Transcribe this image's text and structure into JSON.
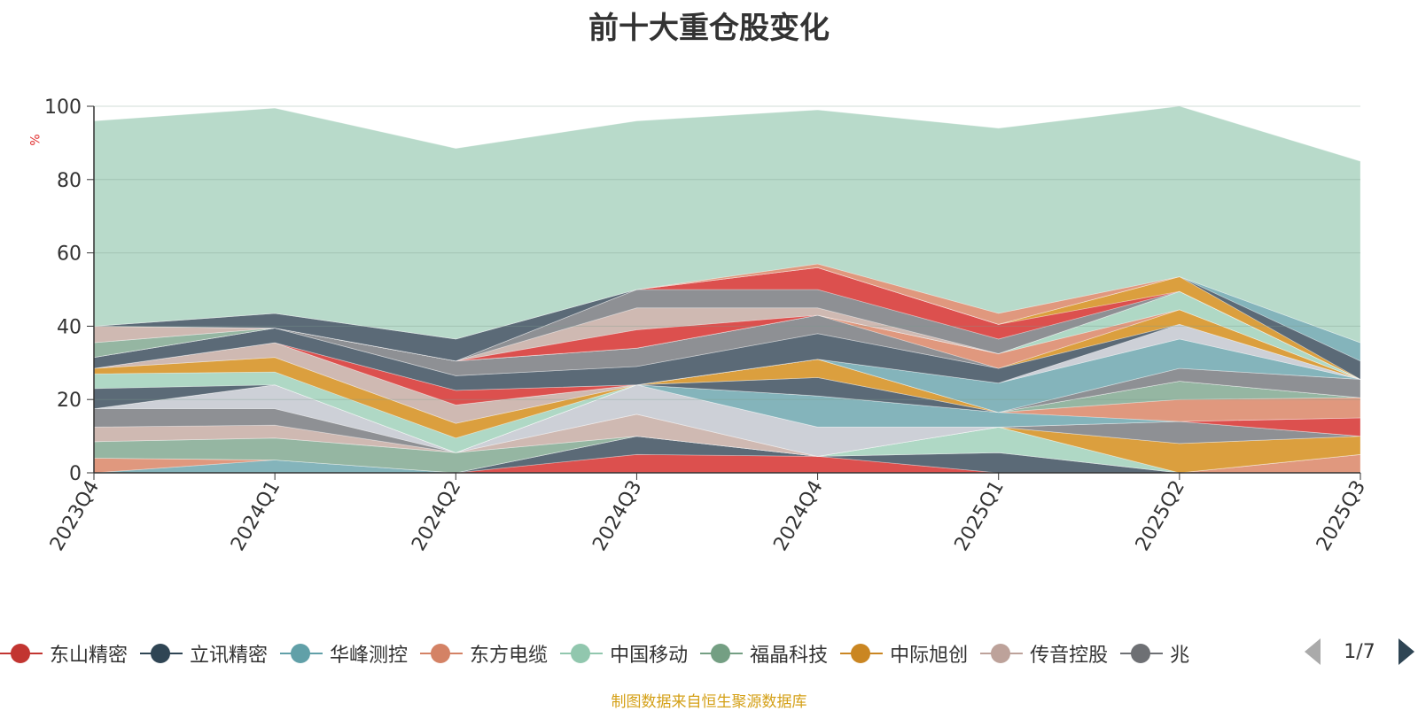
{
  "title": "前十大重仓股变化",
  "unit": "%",
  "source": "制图数据来自恒生聚源数据库",
  "pager": {
    "text": "1/7"
  },
  "legend": [
    {
      "name": "东山精密",
      "color": "#c23531"
    },
    {
      "name": "立讯精密",
      "color": "#2f4554"
    },
    {
      "name": "华峰测控",
      "color": "#61a0a8"
    },
    {
      "name": "东方电缆",
      "color": "#d48265"
    },
    {
      "name": "中国移动",
      "color": "#91c7ae"
    },
    {
      "name": "福晶科技",
      "color": "#749f83"
    },
    {
      "name": "中际旭创",
      "color": "#ca8622"
    },
    {
      "name": "传音控股",
      "color": "#bda29a"
    },
    {
      "name": "兆",
      "color": "#6e7074"
    }
  ],
  "chart_data": {
    "type": "area",
    "title": "前十大重仓股变化",
    "ylabel": "%",
    "ylim": [
      0,
      100
    ],
    "yticks": [
      0,
      20,
      40,
      60,
      80,
      100
    ],
    "categories": [
      "2023Q4",
      "2024Q1",
      "2024Q2",
      "2024Q3",
      "2024Q4",
      "2025Q1",
      "2025Q2",
      "2025Q3"
    ],
    "series": [
      {
        "color": "#d9413f",
        "values": [
          0,
          0,
          0,
          5,
          4.5,
          0,
          0,
          0
        ]
      },
      {
        "color": "#4d5d6b",
        "values": [
          0,
          0,
          0,
          5,
          0,
          5.5,
          0,
          0
        ]
      },
      {
        "color": "#79aeb5",
        "values": [
          0,
          3.5,
          0,
          0,
          0,
          0,
          0,
          0
        ]
      },
      {
        "color": "#dd8f73",
        "values": [
          4,
          0,
          0,
          0,
          0,
          0,
          0,
          5
        ]
      },
      {
        "color": "#a8d5c0",
        "values": [
          0,
          0,
          0,
          0,
          0,
          7,
          0,
          0
        ]
      },
      {
        "color": "#8cb09a",
        "values": [
          4.5,
          6,
          5.5,
          0,
          0,
          0,
          0,
          0
        ]
      },
      {
        "color": "#d8972e",
        "values": [
          0,
          0,
          0,
          0,
          0,
          0,
          8,
          5
        ]
      },
      {
        "color": "#cbb3ab",
        "values": [
          4,
          3.5,
          0,
          6,
          0,
          0,
          0,
          0
        ]
      },
      {
        "color": "#84878b",
        "values": [
          5,
          4.5,
          0,
          0,
          0,
          0,
          6,
          0
        ]
      },
      {
        "color": "#c9ccd4",
        "values": [
          0,
          6.5,
          0,
          8,
          8,
          0,
          0,
          0
        ]
      },
      {
        "color": "#d9413f",
        "values": [
          0,
          0,
          0,
          0,
          0,
          0,
          0,
          5
        ]
      },
      {
        "color": "#79aeb5",
        "values": [
          0,
          0,
          0,
          0,
          8.5,
          4,
          0,
          0
        ]
      },
      {
        "color": "#dd8f73",
        "values": [
          0,
          0,
          0,
          0,
          0,
          0,
          6,
          5.5
        ]
      },
      {
        "color": "#8cb09a",
        "values": [
          0,
          0,
          0,
          0,
          0,
          0,
          5,
          0
        ]
      },
      {
        "color": "#4d5d6b",
        "values": [
          5.5,
          0,
          0,
          0,
          5,
          0,
          0,
          0
        ]
      },
      {
        "color": "#a8d5c0",
        "values": [
          4,
          3.5,
          4,
          0,
          0,
          0,
          0,
          0
        ]
      },
      {
        "color": "#d8972e",
        "values": [
          1.5,
          4,
          4,
          0,
          5,
          0,
          0,
          0
        ]
      },
      {
        "color": "#84878b",
        "values": [
          0,
          0,
          0,
          0,
          0,
          0,
          3.5,
          5
        ]
      },
      {
        "color": "#cbb3ab",
        "values": [
          0,
          4,
          5,
          0,
          0,
          0,
          0,
          0
        ]
      },
      {
        "color": "#79aeb5",
        "values": [
          0,
          0,
          0,
          0,
          0,
          8,
          8,
          0
        ]
      },
      {
        "color": "#d9413f",
        "values": [
          0,
          0,
          4,
          0,
          0,
          0,
          0,
          0
        ]
      },
      {
        "color": "#c9ccd4",
        "values": [
          0,
          0,
          0,
          0,
          0,
          0,
          4,
          0
        ]
      },
      {
        "color": "#4d5d6b",
        "values": [
          3,
          4,
          4,
          5,
          7,
          4,
          0,
          0
        ]
      },
      {
        "color": "#d8972e",
        "values": [
          0,
          0,
          0,
          0,
          0,
          0,
          4,
          0
        ]
      },
      {
        "color": "#84878b",
        "values": [
          0,
          0,
          4,
          5,
          5,
          0,
          0,
          0
        ]
      },
      {
        "color": "#dd8f73",
        "values": [
          0,
          0,
          0,
          0,
          0,
          4,
          0,
          0
        ]
      },
      {
        "color": "#a8d5c0",
        "values": [
          0,
          0,
          0,
          0,
          0,
          0,
          5,
          0
        ]
      },
      {
        "color": "#8cb09a",
        "values": [
          4,
          0,
          0,
          0,
          0,
          0,
          0,
          0
        ]
      },
      {
        "color": "#d9413f",
        "values": [
          0,
          0,
          0,
          5,
          0,
          0,
          0,
          0
        ]
      },
      {
        "color": "#cbb3ab",
        "values": [
          4.5,
          0,
          0,
          6,
          2,
          0,
          0,
          0
        ]
      },
      {
        "color": "#84878b",
        "values": [
          0,
          0,
          0,
          5,
          5,
          4,
          0,
          0
        ]
      },
      {
        "color": "#d9413f",
        "values": [
          0,
          0,
          0,
          0,
          6,
          4,
          0,
          0
        ]
      },
      {
        "color": "#d8972e",
        "values": [
          0,
          0,
          0,
          0,
          0,
          0,
          4,
          0
        ]
      },
      {
        "color": "#4d5d6b",
        "values": [
          0,
          4,
          6,
          0,
          0,
          0,
          0,
          5
        ]
      },
      {
        "color": "#79aeb5",
        "values": [
          0,
          0,
          0,
          0,
          0,
          0,
          0,
          5
        ]
      },
      {
        "color": "#dd8f73",
        "values": [
          0,
          0,
          0,
          0,
          1,
          3,
          0,
          0
        ]
      },
      {
        "color": "#b2d7c6",
        "values": [
          56,
          56,
          52,
          46,
          42,
          50.5,
          46.5,
          49.5
        ]
      }
    ]
  }
}
